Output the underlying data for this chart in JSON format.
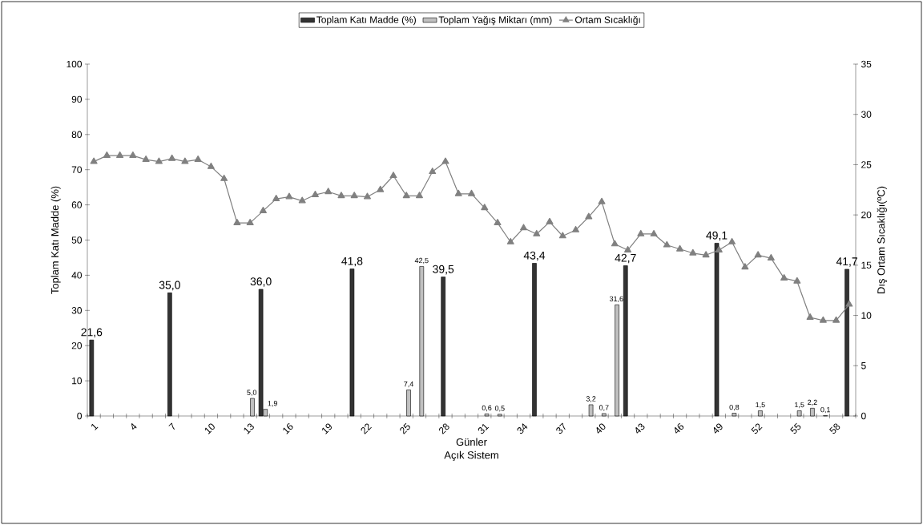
{
  "chart_data": {
    "type": "bar",
    "categories": [
      "1",
      null,
      null,
      "4",
      null,
      null,
      "7",
      null,
      null,
      "10",
      null,
      null,
      "13",
      null,
      null,
      "16",
      null,
      null,
      "19",
      null,
      null,
      "22",
      null,
      null,
      "25",
      null,
      null,
      "28",
      null,
      null,
      "31",
      null,
      null,
      "34",
      null,
      null,
      "37",
      null,
      null,
      "40",
      null,
      null,
      "43",
      null,
      null,
      "46",
      null,
      null,
      "49",
      null,
      null,
      "52",
      null,
      null,
      "55",
      null,
      null,
      "58",
      null
    ],
    "series": [
      {
        "name": "Toplam Katı Madde (%)",
        "color": "#333333",
        "values": [
          21.6,
          null,
          null,
          null,
          null,
          null,
          35.0,
          null,
          null,
          null,
          null,
          null,
          null,
          36.0,
          null,
          null,
          null,
          null,
          null,
          null,
          41.8,
          null,
          null,
          null,
          null,
          null,
          null,
          39.5,
          null,
          null,
          null,
          null,
          null,
          null,
          43.4,
          null,
          null,
          null,
          null,
          null,
          null,
          42.7,
          null,
          null,
          null,
          null,
          null,
          null,
          49.1,
          null,
          null,
          null,
          null,
          null,
          null,
          null,
          null,
          null,
          41.7
        ],
        "value_labels": [
          "21,6",
          null,
          null,
          null,
          null,
          null,
          "35,0",
          null,
          null,
          null,
          null,
          null,
          null,
          "36,0",
          null,
          null,
          null,
          null,
          null,
          null,
          "41,8",
          null,
          null,
          null,
          null,
          null,
          null,
          "39,5",
          null,
          null,
          null,
          null,
          null,
          null,
          "43,4",
          null,
          null,
          null,
          null,
          null,
          null,
          "42,7",
          null,
          null,
          null,
          null,
          null,
          null,
          "49,1",
          null,
          null,
          null,
          null,
          null,
          null,
          null,
          null,
          null,
          "41,7"
        ]
      },
      {
        "name": "Toplam Yağış Miktarı (mm)",
        "color": "#c0c0c0",
        "values": [
          null,
          null,
          null,
          null,
          null,
          null,
          null,
          null,
          null,
          null,
          null,
          null,
          5.0,
          1.9,
          null,
          null,
          null,
          null,
          null,
          null,
          null,
          null,
          null,
          null,
          7.4,
          42.5,
          null,
          null,
          null,
          null,
          0.6,
          0.5,
          null,
          null,
          null,
          null,
          null,
          null,
          3.2,
          0.7,
          31.6,
          null,
          null,
          null,
          null,
          null,
          null,
          null,
          null,
          0.8,
          null,
          1.5,
          null,
          null,
          1.5,
          2.2,
          0.1,
          null,
          null
        ],
        "value_labels": [
          null,
          null,
          null,
          null,
          null,
          null,
          null,
          null,
          null,
          null,
          null,
          null,
          "5,0",
          "1,9",
          null,
          null,
          null,
          null,
          null,
          null,
          null,
          null,
          null,
          null,
          "7,4",
          "42,5",
          null,
          null,
          null,
          null,
          "0,6",
          "0,5",
          null,
          null,
          null,
          null,
          null,
          null,
          "3,2",
          "0,7",
          "31,6",
          null,
          null,
          null,
          null,
          null,
          null,
          null,
          null,
          "0,8",
          null,
          "1,5",
          null,
          null,
          "1,5",
          "2,2",
          "0,1",
          null,
          null
        ]
      },
      {
        "name": "Ortam Sıcaklığı",
        "type": "line",
        "axis": "y2",
        "marker": "triangle",
        "color": "#808080",
        "values": [
          25.3,
          25.9,
          25.9,
          25.9,
          25.5,
          25.3,
          25.6,
          25.3,
          25.5,
          24.8,
          23.6,
          19.2,
          19.2,
          20.4,
          21.6,
          21.8,
          21.4,
          22.0,
          22.3,
          21.9,
          21.9,
          21.8,
          22.5,
          23.9,
          21.9,
          21.9,
          24.3,
          25.3,
          22.1,
          22.1,
          20.7,
          19.2,
          17.3,
          18.7,
          18.1,
          19.3,
          17.9,
          18.5,
          19.8,
          21.3,
          17.1,
          16.5,
          18.1,
          18.1,
          17.0,
          16.6,
          16.2,
          16.0,
          16.5,
          17.3,
          14.8,
          16.0,
          15.7,
          13.7,
          13.4,
          9.8,
          9.5,
          9.5,
          11.1
        ]
      }
    ],
    "xlabel": "Günler",
    "ylabel": "Toplam Katı Madde (%)",
    "y2label": "Dış Ortam Sıcaklığı(ºC)",
    "annotations": [
      "Açık Sistem"
    ],
    "ylim": [
      0,
      100
    ],
    "yticks": [
      0,
      10,
      20,
      30,
      40,
      50,
      60,
      70,
      80,
      90,
      100
    ],
    "y2lim": [
      0,
      35
    ],
    "y2ticks": [
      0,
      5,
      10,
      15,
      20,
      25,
      30,
      35
    ],
    "legend": "top"
  }
}
